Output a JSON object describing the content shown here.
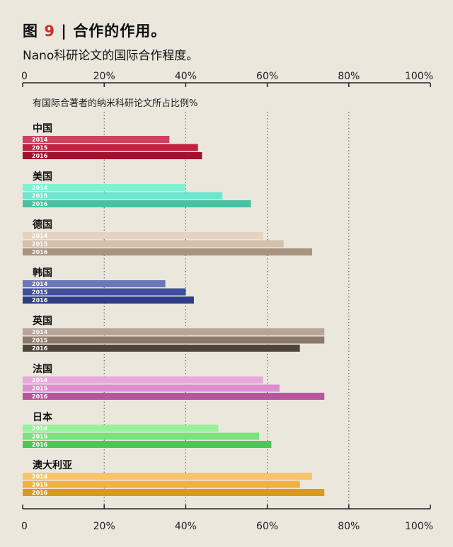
{
  "header": {
    "figure_label": "图",
    "figure_number": "9",
    "separator": "|",
    "title": "合作的作用。",
    "subtitle": "Nano科研论文的国际合作程度。"
  },
  "chart_data": {
    "type": "bar",
    "orientation": "horizontal",
    "title": "有国际合著者的纳米科研论文所占比例%",
    "xlim": [
      0,
      100
    ],
    "x_ticks": [
      "0",
      "20%",
      "40%",
      "60%",
      "80%",
      "100%"
    ],
    "grid": "dotted vertical",
    "series_names": [
      "2014",
      "2015",
      "2016"
    ],
    "groups": [
      {
        "name": "中国",
        "values": [
          36,
          43,
          44
        ],
        "colors": [
          "#d0415d",
          "#c21f40",
          "#a3102e"
        ]
      },
      {
        "name": "美国",
        "values": [
          40,
          49,
          56
        ],
        "colors": [
          "#7ef2d4",
          "#6ae7cc",
          "#46c1a2"
        ]
      },
      {
        "name": "德国",
        "values": [
          59,
          64,
          71
        ],
        "colors": [
          "#e5d3c1",
          "#d6c0ab",
          "#a89280"
        ]
      },
      {
        "name": "韩国",
        "values": [
          35,
          40,
          42
        ],
        "colors": [
          "#6a78b8",
          "#3e4f9e",
          "#2f3d85"
        ]
      },
      {
        "name": "英国",
        "values": [
          74,
          74,
          68
        ],
        "colors": [
          "#b6a498",
          "#8c7a6c",
          "#4f4439"
        ]
      },
      {
        "name": "法国",
        "values": [
          59,
          63,
          74
        ],
        "colors": [
          "#e8a8de",
          "#dc8ed0",
          "#b8559e"
        ]
      },
      {
        "name": "日本",
        "values": [
          48,
          58,
          61
        ],
        "colors": [
          "#98f29c",
          "#78e27e",
          "#4fc45a"
        ]
      },
      {
        "name": "澳大利亚",
        "values": [
          71,
          68,
          74
        ],
        "colors": [
          "#f6c56a",
          "#f0b13e",
          "#d89a22"
        ]
      }
    ]
  }
}
